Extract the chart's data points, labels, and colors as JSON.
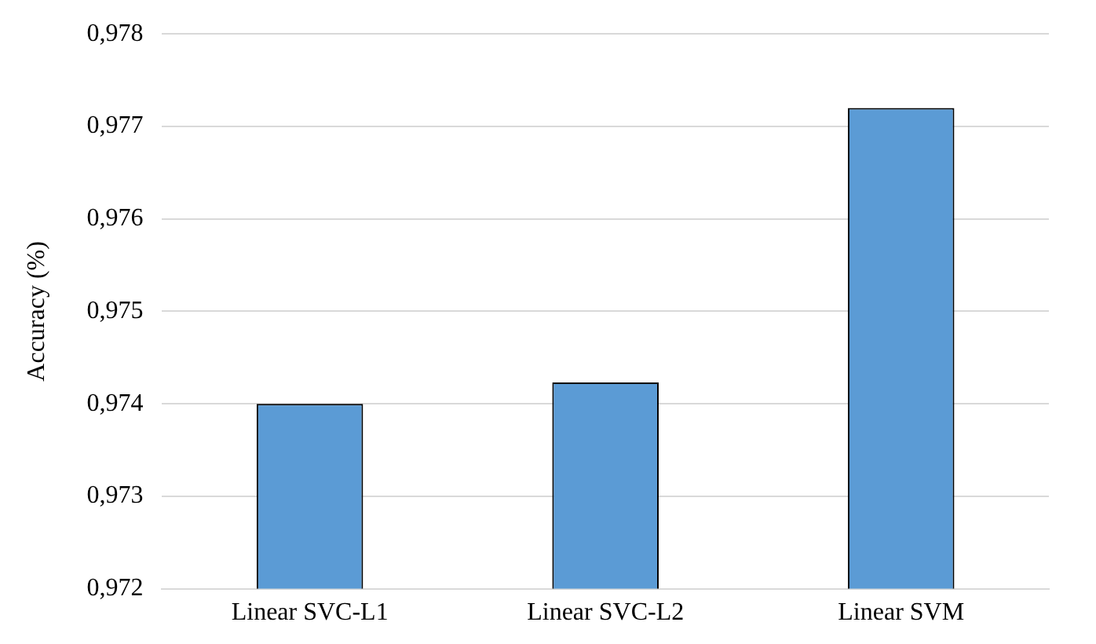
{
  "chart_data": {
    "type": "bar",
    "ylabel": "Accuracy (%)",
    "categories": [
      "Linear SVC-L1",
      "Linear SVC-L2",
      "Linear SVM"
    ],
    "values": [
      0.974,
      0.97423,
      0.9772
    ],
    "color": "#5b9bd5",
    "ylim": [
      0.972,
      0.978
    ],
    "yticks": [
      {
        "value": 0.972,
        "label": "0,972"
      },
      {
        "value": 0.973,
        "label": "0,973"
      },
      {
        "value": 0.974,
        "label": "0,974"
      },
      {
        "value": 0.975,
        "label": "0,975"
      },
      {
        "value": 0.976,
        "label": "0,976"
      },
      {
        "value": 0.977,
        "label": "0,977"
      },
      {
        "value": 0.978,
        "label": "0,978"
      }
    ],
    "grid": "y"
  }
}
